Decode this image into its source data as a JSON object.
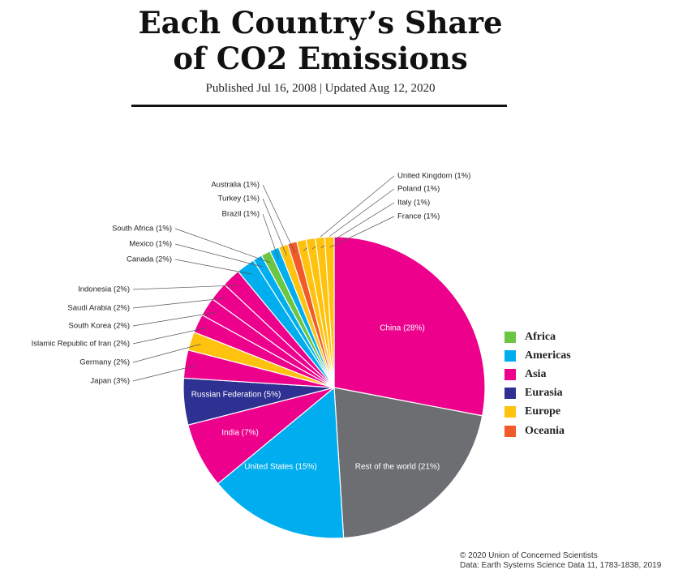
{
  "header": {
    "title_line1": "Each Country’s Share",
    "title_line2": "of CO2 Emissions",
    "subtitle": "Published Jul 16, 2008 | Updated Aug 12, 2020"
  },
  "credit": {
    "line1": "© 2020 Union of Concerned Scientists",
    "line2": "Data: Earth Systems Science Data 11, 1783-1838, 2019"
  },
  "chart_data": {
    "type": "pie",
    "title": "Each Country’s Share of CO2 Emissions",
    "unit": "%",
    "regions": [
      {
        "name": "Africa",
        "color": "#6cc644"
      },
      {
        "name": "Americas",
        "color": "#00aeef"
      },
      {
        "name": "Asia",
        "color": "#ec008c"
      },
      {
        "name": "Eurasia",
        "color": "#2e3192"
      },
      {
        "name": "Europe",
        "color": "#ffc20e"
      },
      {
        "name": "Oceania",
        "color": "#f15a29"
      },
      {
        "name": "Rest of the world",
        "color": "#6d6e71"
      }
    ],
    "slices": [
      {
        "label": "China (28%)",
        "name": "China",
        "value": 28,
        "region": "Asia"
      },
      {
        "label": "Rest of the world (21%)",
        "name": "Rest of the world",
        "value": 21,
        "region": "Rest of the world"
      },
      {
        "label": "United States (15%)",
        "name": "United States",
        "value": 15,
        "region": "Americas"
      },
      {
        "label": "India (7%)",
        "name": "India",
        "value": 7,
        "region": "Asia"
      },
      {
        "label": "Russian Federation (5%)",
        "name": "Russian Federation",
        "value": 5,
        "region": "Eurasia"
      },
      {
        "label": "Japan (3%)",
        "name": "Japan",
        "value": 3,
        "region": "Asia"
      },
      {
        "label": "Germany (2%)",
        "name": "Germany",
        "value": 2,
        "region": "Europe"
      },
      {
        "label": "Islamic Republic of Iran (2%)",
        "name": "Islamic Republic of Iran",
        "value": 2,
        "region": "Asia"
      },
      {
        "label": "South Korea (2%)",
        "name": "South Korea",
        "value": 2,
        "region": "Asia"
      },
      {
        "label": "Saudi Arabia (2%)",
        "name": "Saudi Arabia",
        "value": 2,
        "region": "Asia"
      },
      {
        "label": "Indonesia (2%)",
        "name": "Indonesia",
        "value": 2,
        "region": "Asia"
      },
      {
        "label": "Canada (2%)",
        "name": "Canada",
        "value": 2,
        "region": "Americas"
      },
      {
        "label": "Mexico (1%)",
        "name": "Mexico",
        "value": 1,
        "region": "Americas"
      },
      {
        "label": "South Africa (1%)",
        "name": "South Africa",
        "value": 1,
        "region": "Africa"
      },
      {
        "label": "Brazil (1%)",
        "name": "Brazil",
        "value": 1,
        "region": "Americas"
      },
      {
        "label": "Turkey (1%)",
        "name": "Turkey",
        "value": 1,
        "region": "Europe"
      },
      {
        "label": "Australia (1%)",
        "name": "Australia",
        "value": 1,
        "region": "Oceania"
      },
      {
        "label": "United Kingdom (1%)",
        "name": "United Kingdom",
        "value": 1,
        "region": "Europe"
      },
      {
        "label": "Poland (1%)",
        "name": "Poland",
        "value": 1,
        "region": "Europe"
      },
      {
        "label": "Italy (1%)",
        "name": "Italy",
        "value": 1,
        "region": "Europe"
      },
      {
        "label": "France (1%)",
        "name": "France",
        "value": 1,
        "region": "Europe"
      }
    ],
    "legend": [
      "Africa",
      "Americas",
      "Asia",
      "Eurasia",
      "Europe",
      "Oceania"
    ],
    "legend_position": "right"
  }
}
